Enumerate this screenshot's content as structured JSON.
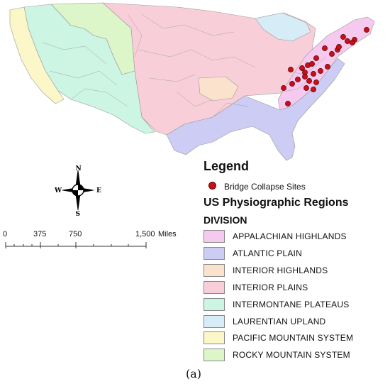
{
  "map": {
    "region_colors": {
      "appalachian": "#f6c9ee",
      "atlantic": "#ccccf4",
      "interior_highlands": "#fbe2cd",
      "interior_plains": "#f8cfd8",
      "intermontane": "#ccf5e3",
      "laurentian": "#d6ecf6",
      "pacific": "#fbf7c8",
      "rocky": "#dcf5c9"
    },
    "site_color": "#c8101a"
  },
  "legend": {
    "title": "Legend",
    "symbol_label": "Bridge Collapse Sites",
    "subtitle": "US Physiographic Regions",
    "field": "DIVISION",
    "divisions": [
      {
        "label": "APPALACHIAN HIGHLANDS",
        "color": "#f6c9ee"
      },
      {
        "label": "ATLANTIC PLAIN",
        "color": "#ccccf4"
      },
      {
        "label": "INTERIOR HIGHLANDS",
        "color": "#fbe2cd"
      },
      {
        "label": "INTERIOR PLAINS",
        "color": "#f8cfd8"
      },
      {
        "label": "INTERMONTANE PLATEAUS",
        "color": "#ccf5e3"
      },
      {
        "label": "LAURENTIAN UPLAND",
        "color": "#d6ecf6"
      },
      {
        "label": "PACIFIC MOUNTAIN SYSTEM",
        "color": "#fbf7c8"
      },
      {
        "label": "ROCKY MOUNTAIN SYSTEM",
        "color": "#dcf5c9"
      }
    ]
  },
  "compass": {
    "n": "N",
    "s": "S",
    "e": "E",
    "w": "W"
  },
  "scale_bar": {
    "labels": [
      "0",
      "375",
      "750",
      "1,500"
    ],
    "unit": "Miles"
  },
  "caption": "(a)"
}
